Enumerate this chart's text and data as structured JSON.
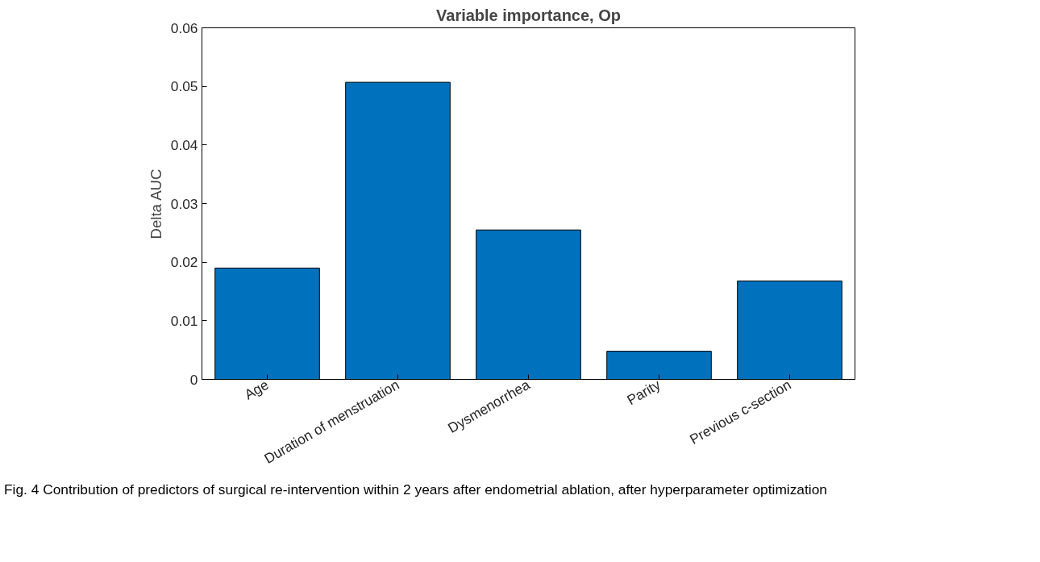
{
  "chart_data": {
    "type": "bar",
    "title": "Variable importance, Op",
    "ylabel": "Delta AUC",
    "categories": [
      "Age",
      "Duration of menstruation",
      "Dysmenorrhea",
      "Parity",
      "Previous c-section"
    ],
    "values": [
      0.019,
      0.0507,
      0.0255,
      0.0048,
      0.0168
    ],
    "color": "#0072bd",
    "ylim": [
      0,
      0.06
    ],
    "yticks": [
      0,
      0.01,
      0.02,
      0.03,
      0.04,
      0.05,
      0.06
    ],
    "grid": false,
    "annotations": [
      "Fig. 4 Contribution of predictors of surgical re-intervention within 2 years after endometrial ablation, after hyperparameter optimization"
    ]
  }
}
